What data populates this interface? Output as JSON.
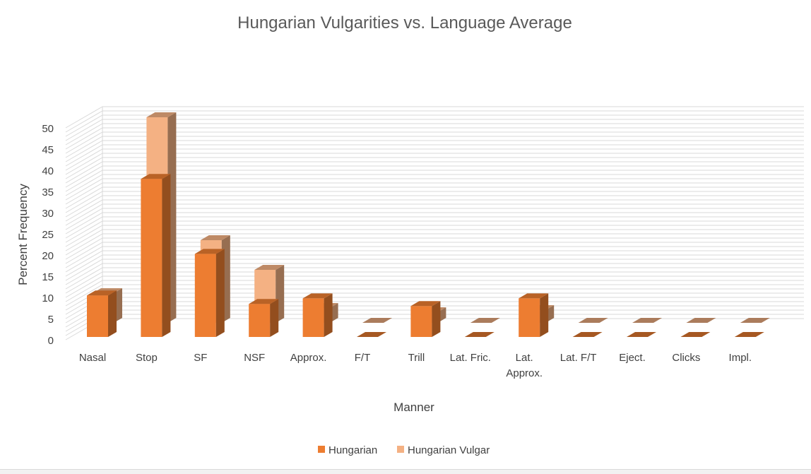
{
  "chart_data": {
    "type": "bar",
    "title": "Hungarian Vulgarities vs. Language Average",
    "xlabel": "Manner",
    "ylabel": "Percent Frequency",
    "ylim": [
      0,
      50
    ],
    "yticks": [
      "0",
      "5",
      "10",
      "15",
      "20",
      "25",
      "30",
      "35",
      "40",
      "45",
      "50"
    ],
    "grid": true,
    "legend_position": "bottom",
    "categories": [
      "Nasal",
      "Stop",
      "SF",
      "NSF",
      "Approx.",
      "F/T",
      "Trill",
      "Lat. Fric.",
      "Lat. Approx.",
      "Lat. F/T",
      "Eject.",
      "Clicks",
      "Impl."
    ],
    "series": [
      {
        "name": "Hungarian",
        "color": "#ed7d31",
        "values": [
          9.8,
          37.3,
          19.6,
          7.8,
          9.1,
          0,
          7.3,
          0,
          9.1,
          0,
          0,
          0,
          0
        ]
      },
      {
        "name": "Hungarian Vulgar",
        "color": "#f4b183",
        "values": [
          7,
          48.5,
          19.5,
          12.5,
          3.5,
          0,
          2.5,
          0,
          3,
          0,
          0,
          0,
          0
        ]
      }
    ]
  }
}
